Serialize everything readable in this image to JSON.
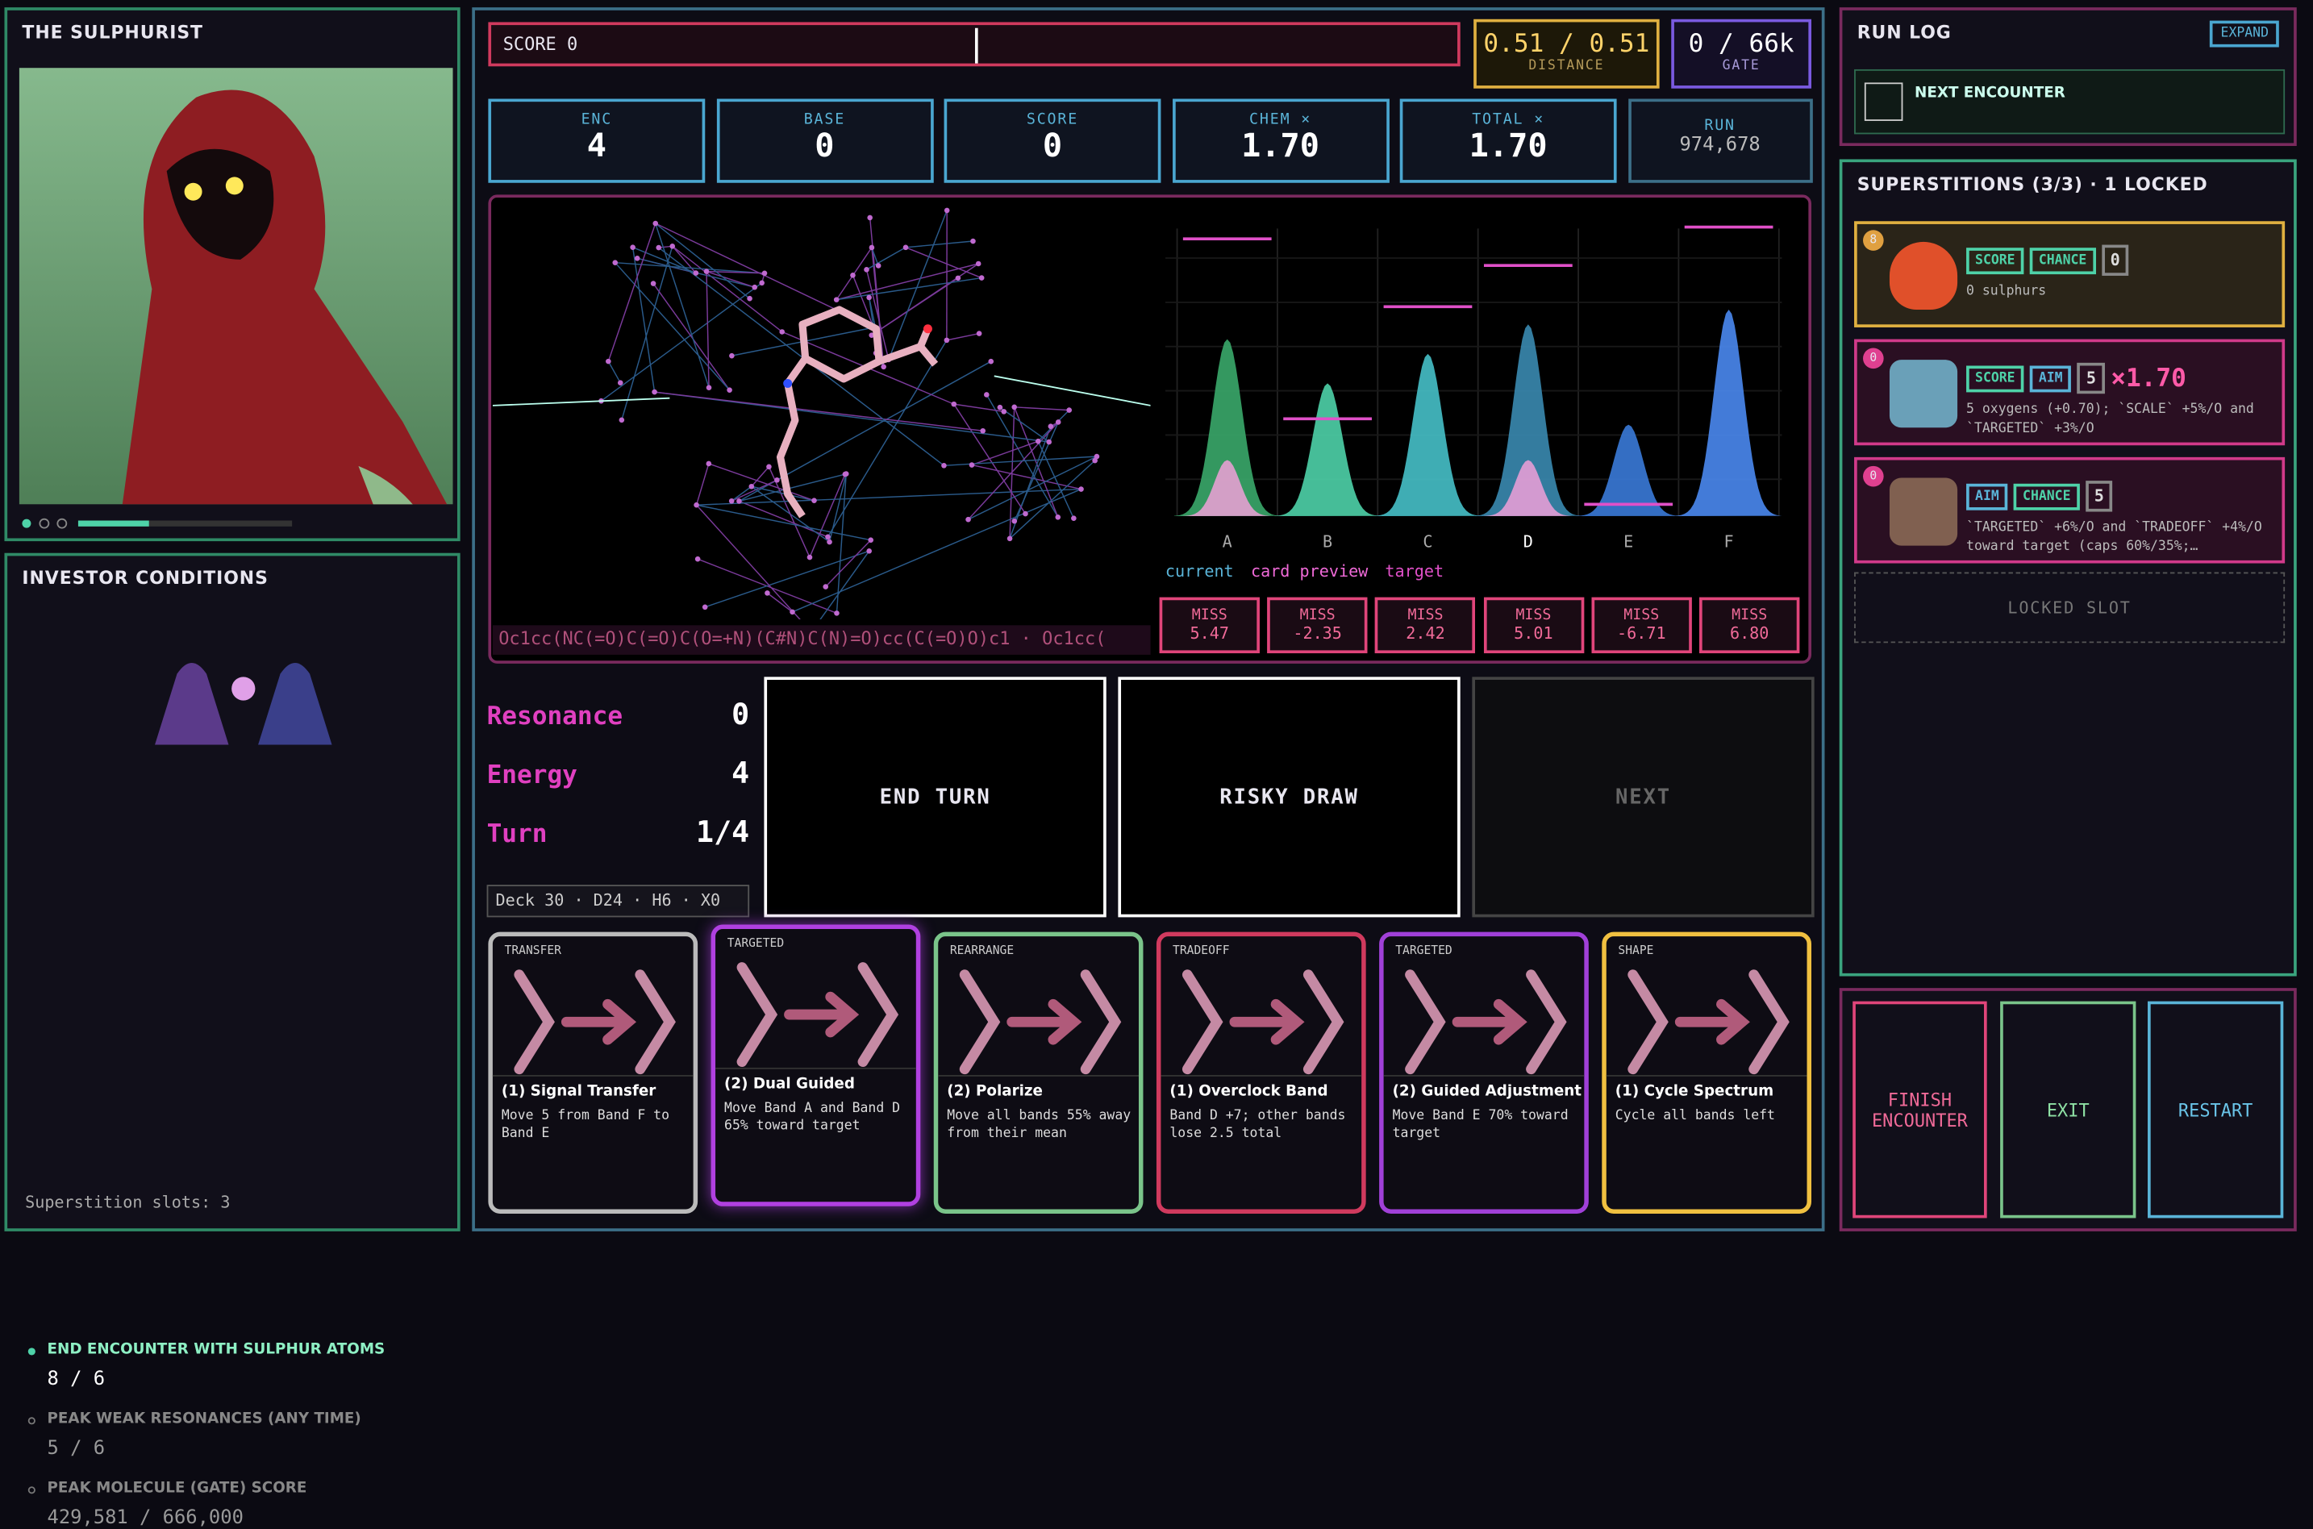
{
  "character": {
    "title": "THE SULPHURIST"
  },
  "investor": {
    "title": "INVESTOR CONDITIONS",
    "conditions": [
      {
        "label": "END ENCOUNTER WITH SULPHUR ATOMS",
        "progress": "8 / 6"
      },
      {
        "label": "PEAK WEAK RESONANCES (ANY TIME)",
        "progress": "5 / 6"
      },
      {
        "label": "PEAK MOLECULE (GATE) SCORE",
        "progress": "429,581 / 666,000"
      }
    ],
    "slots": "Superstition slots: 3"
  },
  "score_bar": {
    "label": "SCORE 0"
  },
  "distance": {
    "value": "0.51 / 0.51",
    "label": "DISTANCE"
  },
  "gate": {
    "value": "0 / 66k",
    "label": "GATE"
  },
  "stats": [
    {
      "label": "ENC",
      "value": "4"
    },
    {
      "label": "BASE",
      "value": "0"
    },
    {
      "label": "SCORE",
      "value": "0"
    },
    {
      "label": "CHEM ×",
      "value": "1.70"
    },
    {
      "label": "TOTAL ×",
      "value": "1.70"
    },
    {
      "label": "RUN",
      "value": "974,678"
    }
  ],
  "smiles": "Oc1cc(NC(=O)C(=O)C(O=+N)(C#N)C(N)=O)cc(C(=O)O)c1 · Oc1cc(",
  "bands": {
    "labels": [
      "A",
      "B",
      "C",
      "D",
      "E",
      "F"
    ],
    "legend": [
      "current",
      "card preview",
      "target"
    ],
    "miss": [
      {
        "label": "MISS",
        "value": "5.47"
      },
      {
        "label": "MISS",
        "value": "-2.35"
      },
      {
        "label": "MISS",
        "value": "2.42"
      },
      {
        "label": "MISS",
        "value": "5.01"
      },
      {
        "label": "MISS",
        "value": "-6.71"
      },
      {
        "label": "MISS",
        "value": "6.80"
      }
    ]
  },
  "counters": [
    {
      "label": "Resonance",
      "value": "0"
    },
    {
      "label": "Energy",
      "value": "4"
    },
    {
      "label": "Turn",
      "value": "1/4"
    }
  ],
  "deck": "Deck 30 · D24 · H6 · X0",
  "actions": [
    "END TURN",
    "RISKY DRAW",
    "NEXT"
  ],
  "cards": [
    {
      "tag": "TRANSFER",
      "title": "(1) Signal Transfer",
      "text": "Move 5 from Band F to Band E"
    },
    {
      "tag": "TARGETED",
      "title": "(2) Dual Guided",
      "text": "Move Band A and Band D 65% toward target"
    },
    {
      "tag": "REARRANGE",
      "title": "(2) Polarize",
      "text": "Move all bands 55% away from their mean"
    },
    {
      "tag": "TRADEOFF",
      "title": "(1) Overclock Band",
      "text": "Band D +7; other bands lose 2.5 total"
    },
    {
      "tag": "TARGETED",
      "title": "(2) Guided Adjustment",
      "text": "Move Band E 70% toward target"
    },
    {
      "tag": "SHAPE",
      "title": "(1) Cycle Spectrum",
      "text": "Cycle all bands left"
    }
  ],
  "run_log": {
    "title": "RUN LOG",
    "expand": "EXPAND",
    "next": "NEXT ENCOUNTER"
  },
  "superstitions": {
    "title": "SUPERSTITIONS (3/3) · 1 LOCKED",
    "items": [
      {
        "badge": "8",
        "tags": [
          "SCORE",
          "CHANCE"
        ],
        "count": "0",
        "mult": null,
        "text": "0 sulphurs"
      },
      {
        "badge": "0",
        "tags": [
          "SCORE",
          "AIM"
        ],
        "count": "5",
        "mult": "×1.70",
        "text": "5 oxygens (+0.70); `SCALE` +5%/O and `TARGETED` +3%/O"
      },
      {
        "badge": "0",
        "tags": [
          "AIM",
          "CHANCE"
        ],
        "count": "5",
        "mult": null,
        "text": "`TARGETED` +6%/O and `TRADEOFF` +4%/O toward target (caps 60%/35%;…"
      }
    ],
    "locked": "LOCKED SLOT"
  },
  "buttons": [
    "FINISH ENCOUNTER",
    "EXIT",
    "RESTART"
  ]
}
